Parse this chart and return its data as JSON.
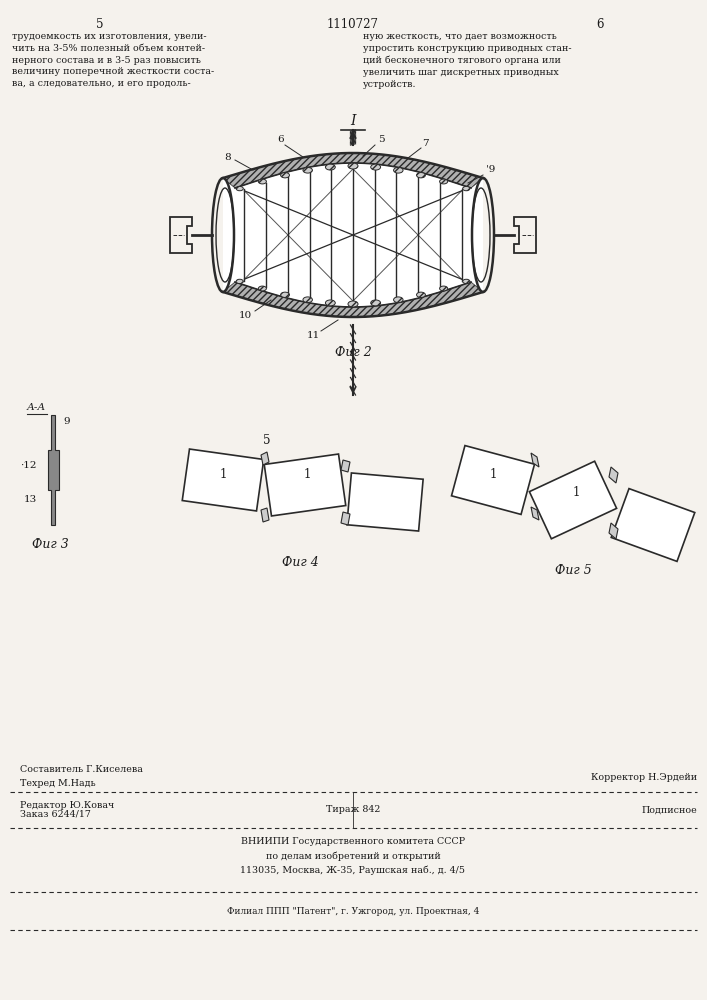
{
  "page_title": "1110727",
  "page_left": "5",
  "page_right": "6",
  "text_left": "трудоемкость их изготовления, увели-\nчить на 3-5% полезный объем контей-\nнерного состава и в 3-5 раз повысить\nвеличину поперечной жесткости соста-\nва, а следовательно, и его продоль-",
  "text_right": "ную жесткость, что дает возможность\nупростить конструкцию приводных стан-\nций бесконечного тягового органа или\nувеличить шаг дискретных приводных\nустройств.",
  "fig2_label": "Фиг 2",
  "fig3_label": "Фиг 3",
  "fig4_label": "Фиг 4",
  "fig5_label": "Фиг 5",
  "aa_label": "А-А",
  "arrow_label": "I",
  "editor_label": "Редактор Ю.Ковач",
  "composer_label": "Составитель Г.Киселева",
  "techred_label": "Техред М.Надь",
  "corrector_label": "Корректор Н.Эрдейи",
  "order_label": "Заказ 6244/17",
  "print_label": "Тираж 842",
  "sign_label": "Подписное",
  "vniipi_line1": "ВНИИПИ Государственного комитета СССР",
  "vniipi_line2": "по делам изобретений и открытий",
  "vniipi_line3": "113035, Москва, Ж-35, Раушская наб., д. 4/5",
  "filial_label": "Филиал ППП \"Патент\", г. Ужгород, ул. Проектная, 4",
  "bg_color": "#f5f2ed",
  "line_color": "#2a2a2a",
  "text_color": "#1a1a1a"
}
